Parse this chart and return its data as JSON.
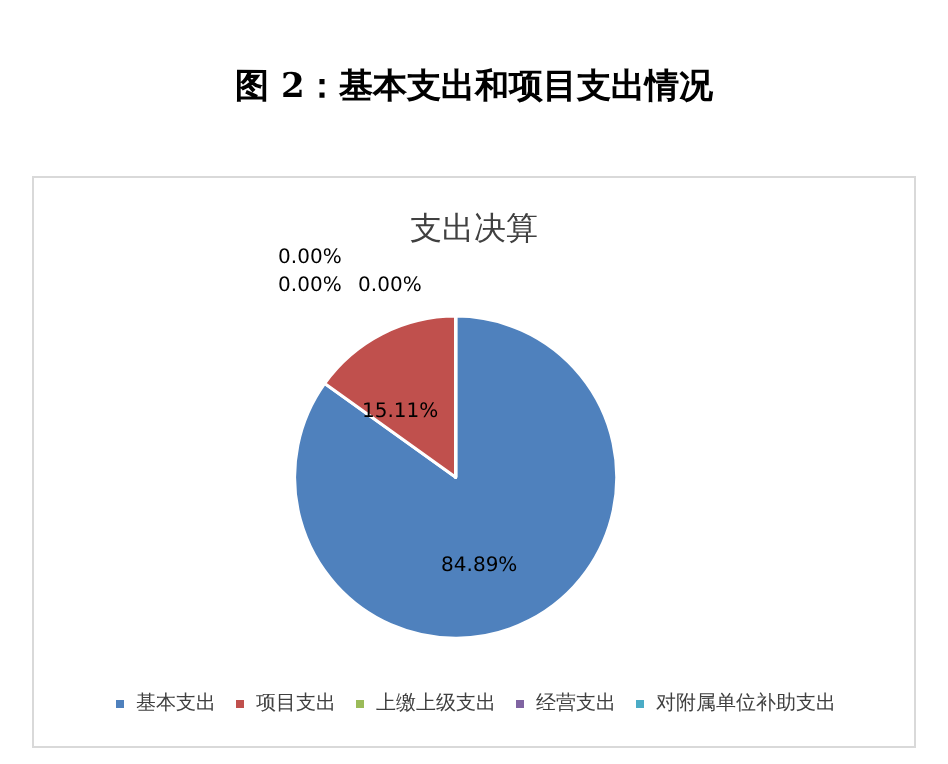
{
  "chart_data": {
    "type": "pie",
    "title": "图 2：基本支出和项目支出情况",
    "subtitle": "支出决算",
    "categories": [
      "基本支出",
      "项目支出",
      "上缴上级支出",
      "经营支出",
      "对附属单位补助支出"
    ],
    "values": [
      84.89,
      15.11,
      0,
      0,
      0
    ],
    "colors": [
      "#4f81bd",
      "#c0504d",
      "#9bbb59",
      "#8064a2",
      "#4bacc6"
    ],
    "value_labels": [
      "84.89%",
      "15.11%",
      "0.00%",
      "0.00%",
      "0.00%"
    ],
    "legend": "bottom"
  }
}
